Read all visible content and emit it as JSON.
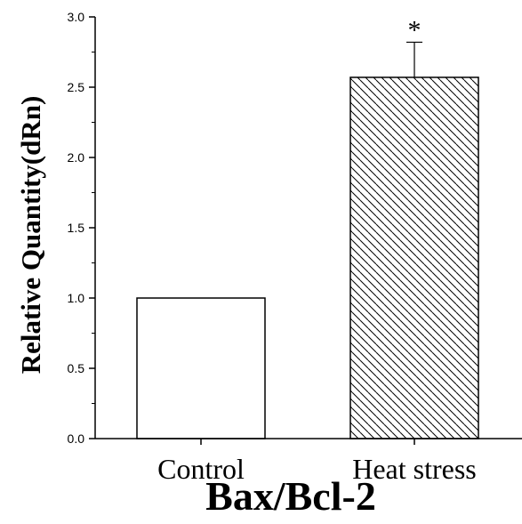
{
  "chart_data": {
    "type": "bar",
    "categories": [
      "Control",
      "Heat stress"
    ],
    "values": [
      1.0,
      2.57
    ],
    "errors": [
      0,
      0.25
    ],
    "annotations": [
      "",
      "*"
    ],
    "patterns": [
      "none",
      "diagonal-hatch"
    ],
    "title": "Bax/Bcl-2",
    "xlabel": "",
    "ylabel": "Relative Quantity(dRn)",
    "ylim": [
      0,
      3.0
    ],
    "yticks": [
      "0.0",
      "0.5",
      "1.0",
      "1.5",
      "2.0",
      "2.5",
      "3.0"
    ],
    "grid": false,
    "legend": "none"
  }
}
